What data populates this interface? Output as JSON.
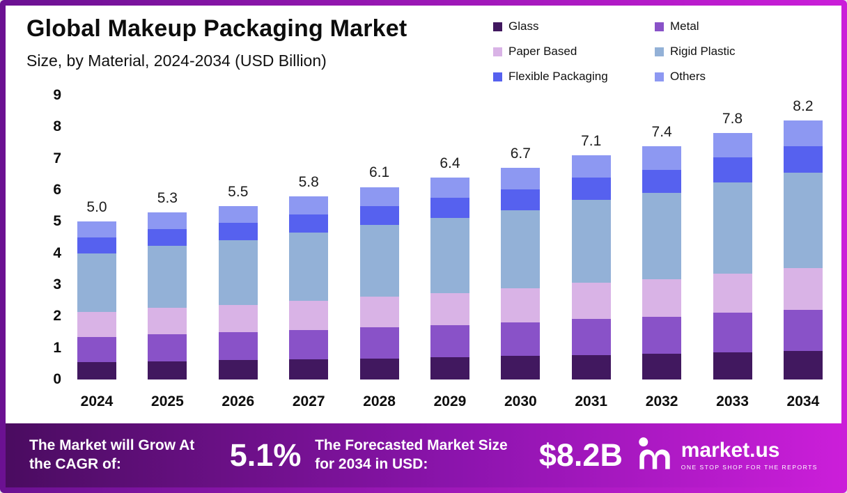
{
  "header": {
    "title": "Global Makeup Packaging Market",
    "subtitle": "Size, by Material, 2024-2034 (USD Billion)"
  },
  "chart_data": {
    "type": "bar",
    "stacked": true,
    "title": "Global Makeup Packaging Market",
    "subtitle": "Size, by Material, 2024-2034 (USD Billion)",
    "xlabel": "",
    "ylabel": "USD Billion",
    "ylim": [
      0,
      9
    ],
    "yticks": [
      0,
      1,
      2,
      3,
      4,
      5,
      6,
      7,
      8,
      9
    ],
    "grid": false,
    "legend_position": "top-right",
    "categories": [
      "2024",
      "2025",
      "2026",
      "2027",
      "2028",
      "2029",
      "2030",
      "2031",
      "2032",
      "2033",
      "2034"
    ],
    "totals": [
      5.0,
      5.3,
      5.5,
      5.8,
      6.1,
      6.4,
      6.7,
      7.1,
      7.4,
      7.8,
      8.2
    ],
    "total_labels": [
      "5.0",
      "5.3",
      "5.5",
      "5.8",
      "6.1",
      "6.4",
      "6.7",
      "7.1",
      "7.4",
      "7.8",
      "8.2"
    ],
    "series": [
      {
        "name": "Glass",
        "color": "#41185f",
        "values": [
          0.55,
          0.58,
          0.61,
          0.64,
          0.67,
          0.7,
          0.74,
          0.78,
          0.81,
          0.86,
          0.9
        ]
      },
      {
        "name": "Metal",
        "color": "#8952c8",
        "values": [
          0.8,
          0.85,
          0.88,
          0.93,
          0.98,
          1.02,
          1.07,
          1.14,
          1.18,
          1.25,
          1.31
        ]
      },
      {
        "name": "Paper Based",
        "color": "#d9b3e6",
        "values": [
          0.8,
          0.85,
          0.88,
          0.93,
          0.98,
          1.02,
          1.07,
          1.14,
          1.18,
          1.25,
          1.31
        ]
      },
      {
        "name": "Rigid Plastic",
        "color": "#93b1d7",
        "values": [
          1.85,
          1.96,
          2.04,
          2.15,
          2.26,
          2.37,
          2.48,
          2.63,
          2.74,
          2.89,
          3.04
        ]
      },
      {
        "name": "Flexible Packaging",
        "color": "#5661ef",
        "values": [
          0.5,
          0.53,
          0.55,
          0.58,
          0.61,
          0.64,
          0.67,
          0.71,
          0.74,
          0.78,
          0.82
        ]
      },
      {
        "name": "Others",
        "color": "#8d98f2",
        "values": [
          0.5,
          0.53,
          0.54,
          0.57,
          0.6,
          0.65,
          0.67,
          0.7,
          0.75,
          0.77,
          0.82
        ]
      }
    ]
  },
  "footer": {
    "cagr_label": "The Market will Grow At the CAGR of:",
    "cagr_value": "5.1%",
    "forecast_label": "The Forecasted Market Size for 2034 in USD:",
    "forecast_value": "$8.2B",
    "brand": "market.us",
    "brand_tagline": "ONE STOP SHOP FOR THE REPORTS"
  },
  "colors": {
    "frame_gradient_start": "#6b1192",
    "frame_gradient_end": "#cb1ed9",
    "footer_gradient_start": "#4a0c60",
    "footer_gradient_end": "#cb1ed9",
    "text": "#0d0d0d"
  }
}
